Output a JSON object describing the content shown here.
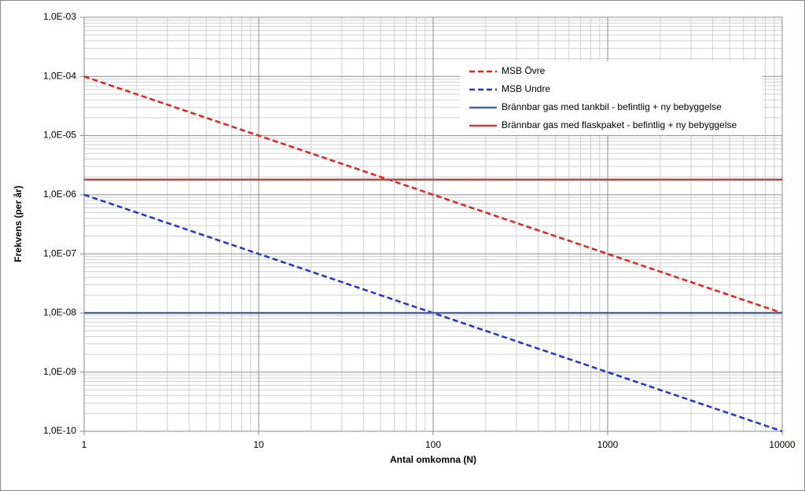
{
  "chart_data": {
    "type": "line",
    "x_label": "Antal omkomna (N)",
    "y_label": "Frekvens (per år)",
    "x": [
      1,
      10000
    ],
    "series": [
      {
        "name": "MSB Övre",
        "color": "#e8201e",
        "dashed": true,
        "values": [
          0.0001,
          1e-08
        ]
      },
      {
        "name": "MSB Undre",
        "color": "#2233d8",
        "dashed": true,
        "values": [
          1e-06,
          1e-10
        ]
      },
      {
        "name": "Brännbar gas med tankbil - befintlig + ny bebyggelse",
        "color": "#3c67ac",
        "dashed": false,
        "values": [
          1e-08,
          1e-08
        ]
      },
      {
        "name": "Brännbar gas med flaskpaket - befintlig + ny bebyggelse",
        "color": "#c0403c",
        "dashed": false,
        "values": [
          1.8e-06,
          1.8e-06
        ]
      }
    ],
    "xlim": [
      1,
      10000
    ],
    "xticks": [
      1,
      10,
      100,
      1000,
      10000
    ],
    "ylim": [
      1e-10,
      0.001
    ],
    "yticks": [
      {
        "value": 1e-10,
        "label": "1,0E-10"
      },
      {
        "value": 1e-09,
        "label": "1,0E-09"
      },
      {
        "value": 1e-08,
        "label": "1,0E-08"
      },
      {
        "value": 1e-07,
        "label": "1,0E-07"
      },
      {
        "value": 1e-06,
        "label": "1,0E-06"
      },
      {
        "value": 1e-05,
        "label": "1,0E-05"
      },
      {
        "value": 0.0001,
        "label": "1,0E-04"
      },
      {
        "value": 0.001,
        "label": "1,0E-03"
      }
    ],
    "xlog": true,
    "ylog": true,
    "grid": true,
    "minor_grid": true,
    "legend": "upper right"
  }
}
